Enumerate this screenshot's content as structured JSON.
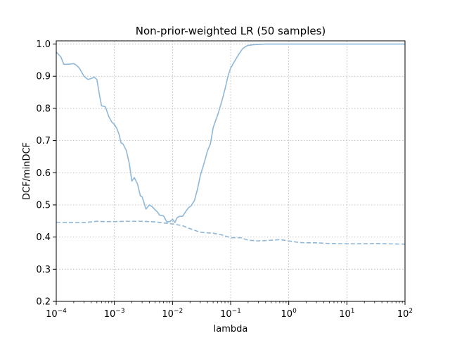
{
  "chart_data": {
    "type": "line",
    "title": "Non-prior-weighted LR (50 samples)",
    "xlabel": "lambda",
    "ylabel": "DCF/minDCF",
    "xscale": "log",
    "xlim": [
      0.0001,
      100
    ],
    "ylim": [
      0.2,
      1.01
    ],
    "grid": true,
    "x_ticks": [
      {
        "value": 0.0001,
        "base": "10",
        "exp": "−4"
      },
      {
        "value": 0.001,
        "base": "10",
        "exp": "−3"
      },
      {
        "value": 0.01,
        "base": "10",
        "exp": "−2"
      },
      {
        "value": 0.1,
        "base": "10",
        "exp": "−1"
      },
      {
        "value": 1,
        "base": "10",
        "exp": "0"
      },
      {
        "value": 10,
        "base": "10",
        "exp": "1"
      },
      {
        "value": 100,
        "base": "10",
        "exp": "2"
      }
    ],
    "y_ticks": [
      "0.2",
      "0.3",
      "0.4",
      "0.5",
      "0.6",
      "0.7",
      "0.8",
      "0.9",
      "1.0"
    ],
    "series": [
      {
        "style": "solid",
        "color": "#8fb8d8",
        "x": [
          0.0001,
          0.00012,
          0.000135,
          0.00015,
          0.00018,
          0.0002,
          0.00022,
          0.00025,
          0.0003,
          0.00035,
          0.0004,
          0.00045,
          0.0005,
          0.00055,
          0.0006,
          0.0007,
          0.0008,
          0.0009,
          0.001,
          0.0011,
          0.0012,
          0.0013,
          0.0014,
          0.0016,
          0.0018,
          0.002,
          0.0022,
          0.0025,
          0.0028,
          0.003,
          0.0035,
          0.004,
          0.0045,
          0.005,
          0.0055,
          0.006,
          0.007,
          0.008,
          0.009,
          0.01,
          0.011,
          0.012,
          0.013,
          0.015,
          0.017,
          0.019,
          0.021,
          0.024,
          0.027,
          0.03,
          0.035,
          0.04,
          0.045,
          0.05,
          0.06,
          0.07,
          0.08,
          0.09,
          0.1,
          0.12,
          0.14,
          0.16,
          0.18,
          0.2,
          0.25,
          0.3,
          0.35,
          0.4,
          0.5,
          0.6,
          0.7,
          1.0,
          2.0,
          5.0,
          10,
          20,
          50,
          100
        ],
        "y": [
          0.975,
          0.96,
          0.937,
          0.937,
          0.938,
          0.939,
          0.935,
          0.925,
          0.9,
          0.89,
          0.893,
          0.897,
          0.89,
          0.845,
          0.808,
          0.805,
          0.775,
          0.758,
          0.75,
          0.738,
          0.72,
          0.693,
          0.69,
          0.67,
          0.63,
          0.574,
          0.585,
          0.565,
          0.528,
          0.525,
          0.487,
          0.5,
          0.494,
          0.485,
          0.478,
          0.468,
          0.466,
          0.447,
          0.448,
          0.455,
          0.445,
          0.46,
          0.464,
          0.465,
          0.48,
          0.492,
          0.497,
          0.515,
          0.55,
          0.59,
          0.63,
          0.668,
          0.69,
          0.74,
          0.78,
          0.82,
          0.86,
          0.9,
          0.925,
          0.95,
          0.97,
          0.985,
          0.992,
          0.996,
          0.998,
          0.999,
          0.9995,
          1.0,
          1.0,
          1.0,
          1.0,
          1.0,
          1.0,
          1.0,
          1.0,
          1.0,
          1.0,
          1.0
        ]
      },
      {
        "style": "dashed",
        "color": "#8fb8d8",
        "x": [
          0.0001,
          0.0002,
          0.0003,
          0.0005,
          0.0007,
          0.001,
          0.0015,
          0.002,
          0.003,
          0.004,
          0.005,
          0.007,
          0.01,
          0.015,
          0.02,
          0.03,
          0.04,
          0.05,
          0.07,
          0.1,
          0.15,
          0.2,
          0.3,
          0.5,
          0.7,
          1.0,
          1.5,
          2.0,
          3.0,
          5.0,
          10,
          20,
          30,
          50,
          100
        ],
        "y": [
          0.446,
          0.445,
          0.445,
          0.449,
          0.448,
          0.448,
          0.449,
          0.449,
          0.449,
          0.448,
          0.447,
          0.444,
          0.441,
          0.435,
          0.426,
          0.415,
          0.413,
          0.412,
          0.407,
          0.398,
          0.398,
          0.39,
          0.388,
          0.39,
          0.392,
          0.388,
          0.383,
          0.382,
          0.382,
          0.38,
          0.379,
          0.379,
          0.38,
          0.379,
          0.378
        ]
      }
    ]
  }
}
